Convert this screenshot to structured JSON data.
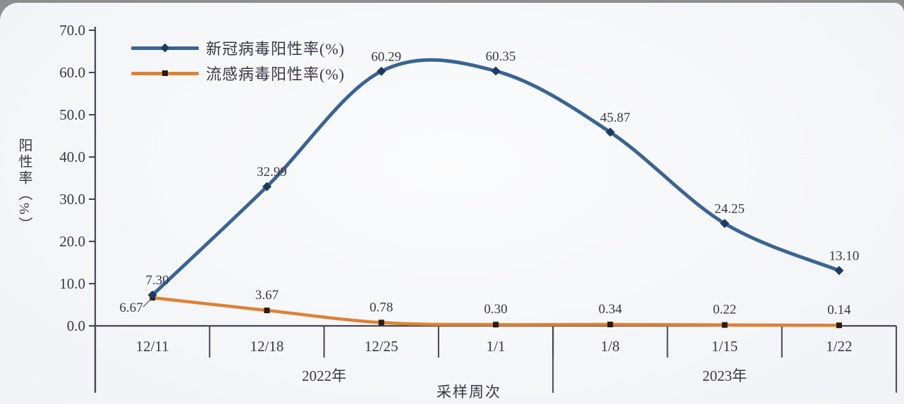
{
  "chart_data": {
    "type": "line",
    "title": "",
    "x_axis_title": "采样周次",
    "y_axis_title": "阳性率（%）",
    "categories": [
      "12/11",
      "12/18",
      "12/25",
      "1/1",
      "1/8",
      "1/15",
      "1/22"
    ],
    "year_groups": [
      {
        "label": "2022年",
        "span": 4
      },
      {
        "label": "2023年",
        "span": 3
      }
    ],
    "y_ticks": [
      "0.0",
      "10.0",
      "20.0",
      "30.0",
      "40.0",
      "50.0",
      "60.0",
      "70.0"
    ],
    "ylim": [
      0,
      70
    ],
    "grid": false,
    "legend_position": "top-left",
    "ink_color": "#3b3544",
    "axis_color": "#4a4550",
    "series": [
      {
        "name": "新冠病毒阳性率(%)",
        "color": "#3a6494",
        "marker": "diamond",
        "marker_color": "#1e3a5f",
        "smooth": true,
        "values": [
          7.3,
          32.99,
          60.29,
          60.35,
          45.87,
          24.25,
          13.1
        ],
        "labels": [
          "7.30",
          "32.99",
          "60.29",
          "60.35",
          "45.87",
          "24.25",
          "13.10"
        ]
      },
      {
        "name": "流感病毒阳性率(%)",
        "color": "#dd8235",
        "marker": "square",
        "marker_color": "#2d1b0e",
        "smooth": true,
        "values": [
          6.67,
          3.67,
          0.78,
          0.3,
          0.34,
          0.22,
          0.14
        ],
        "labels": [
          "6.67",
          "3.67",
          "0.78",
          "0.30",
          "0.34",
          "0.22",
          "0.14"
        ]
      }
    ]
  }
}
